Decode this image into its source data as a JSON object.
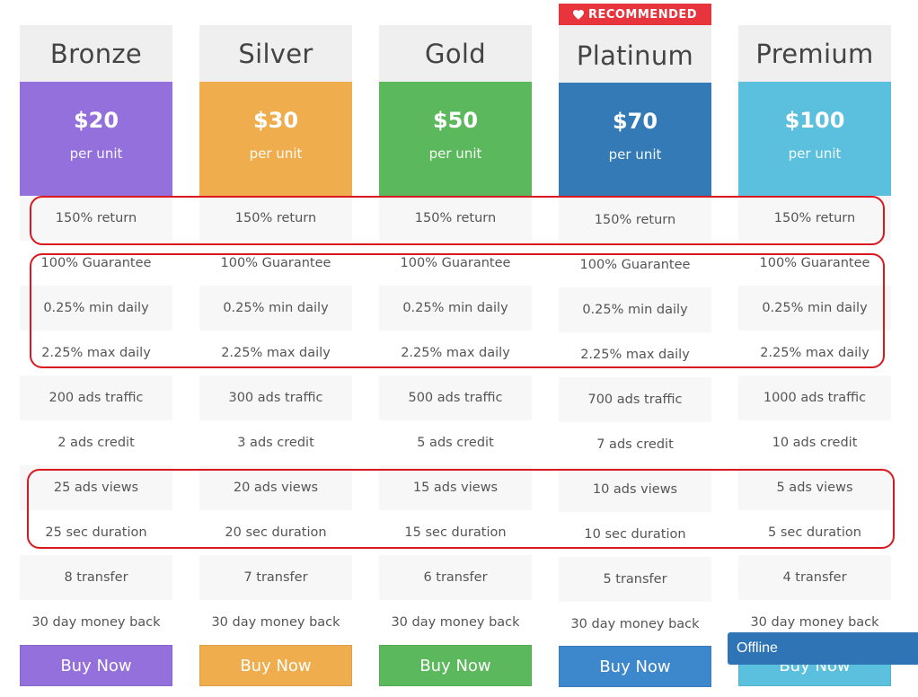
{
  "badge": {
    "icon": "heart-icon",
    "label": "RECOMMENDED"
  },
  "plans": [
    {
      "name": "Bronze",
      "price": "$20",
      "unit": "per unit",
      "color": "#9370db",
      "features": [
        "150% return",
        "100% Guarantee",
        "0.25% min daily",
        "2.25% max daily",
        "200 ads traffic",
        "2 ads credit",
        "25 ads views",
        "25 sec duration",
        "8 transfer",
        "30 day money back"
      ],
      "button": "Buy Now"
    },
    {
      "name": "Silver",
      "price": "$30",
      "unit": "per unit",
      "color": "#f0ad4e",
      "features": [
        "150% return",
        "100% Guarantee",
        "0.25% min daily",
        "2.25% max daily",
        "300 ads traffic",
        "3 ads credit",
        "20 ads views",
        "20 sec duration",
        "7 transfer",
        "30 day money back"
      ],
      "button": "Buy Now"
    },
    {
      "name": "Gold",
      "price": "$50",
      "unit": "per unit",
      "color": "#5cb85c",
      "features": [
        "150% return",
        "100% Guarantee",
        "0.25% min daily",
        "2.25% max daily",
        "500 ads traffic",
        "5 ads credit",
        "15 ads views",
        "15 sec duration",
        "6 transfer",
        "30 day money back"
      ],
      "button": "Buy Now"
    },
    {
      "name": "Platinum",
      "price": "$70",
      "unit": "per unit",
      "color": "#337ab7",
      "features": [
        "150% return",
        "100% Guarantee",
        "0.25% min daily",
        "2.25% max daily",
        "700 ads traffic",
        "7 ads credit",
        "10 ads views",
        "10 sec duration",
        "5 transfer",
        "30 day money back"
      ],
      "button": "Buy Now"
    },
    {
      "name": "Premium",
      "price": "$100",
      "unit": "per unit",
      "color": "#5bc0de",
      "features": [
        "150% return",
        "100% Guarantee",
        "0.25% min daily",
        "2.25% max daily",
        "1000 ads traffic",
        "10 ads credit",
        "5 ads views",
        "5 sec duration",
        "4 transfer",
        "30 day money back"
      ],
      "button": "Buy Now"
    }
  ],
  "chat": {
    "status": "Offline"
  },
  "colors": {
    "highlight": "#d9191f",
    "badge": "#e8343c",
    "chat": "#2f74b5"
  }
}
